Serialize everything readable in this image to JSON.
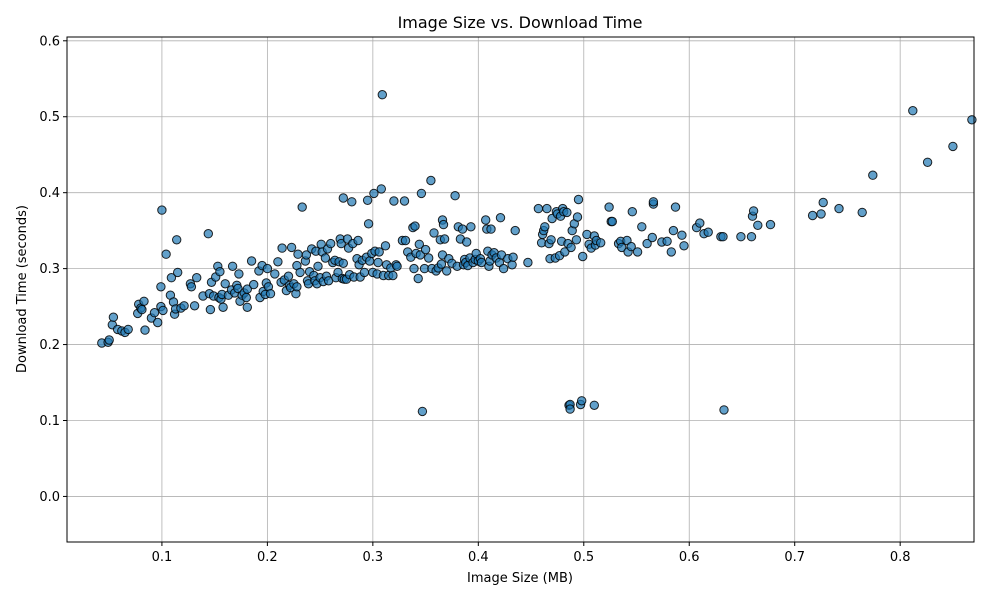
{
  "chart_data": {
    "type": "scatter",
    "title": "Image Size vs. Download Time",
    "xlabel": "Image Size (MB)",
    "ylabel": "Download Time (seconds)",
    "xlim": [
      0.01,
      0.87
    ],
    "ylim": [
      -0.06,
      0.605
    ],
    "xticks": [
      0.1,
      0.2,
      0.3,
      0.4,
      0.5,
      0.6,
      0.7,
      0.8
    ],
    "xtick_labels": [
      "0.1",
      "0.2",
      "0.3",
      "0.4",
      "0.5",
      "0.6",
      "0.7",
      "0.8"
    ],
    "yticks": [
      0.0,
      0.1,
      0.2,
      0.3,
      0.4,
      0.5,
      0.6
    ],
    "ytick_labels": [
      "0.0",
      "0.1",
      "0.2",
      "0.3",
      "0.4",
      "0.5",
      "0.6"
    ],
    "grid": true,
    "marker_color": "#1f77b4",
    "marker_edge_color": "#000000",
    "marker_alpha": 0.7,
    "points": [
      [
        0.043,
        0.202
      ],
      [
        0.049,
        0.203
      ],
      [
        0.05,
        0.206
      ],
      [
        0.053,
        0.226
      ],
      [
        0.054,
        0.236
      ],
      [
        0.058,
        0.22
      ],
      [
        0.062,
        0.218
      ],
      [
        0.065,
        0.216
      ],
      [
        0.068,
        0.22
      ],
      [
        0.077,
        0.241
      ],
      [
        0.078,
        0.253
      ],
      [
        0.08,
        0.248
      ],
      [
        0.081,
        0.246
      ],
      [
        0.083,
        0.257
      ],
      [
        0.084,
        0.219
      ],
      [
        0.09,
        0.235
      ],
      [
        0.093,
        0.242
      ],
      [
        0.096,
        0.229
      ],
      [
        0.099,
        0.276
      ],
      [
        0.099,
        0.25
      ],
      [
        0.1,
        0.377
      ],
      [
        0.101,
        0.245
      ],
      [
        0.104,
        0.319
      ],
      [
        0.108,
        0.265
      ],
      [
        0.109,
        0.288
      ],
      [
        0.111,
        0.256
      ],
      [
        0.112,
        0.24
      ],
      [
        0.113,
        0.247
      ],
      [
        0.114,
        0.338
      ],
      [
        0.115,
        0.295
      ],
      [
        0.118,
        0.248
      ],
      [
        0.121,
        0.251
      ],
      [
        0.127,
        0.28
      ],
      [
        0.128,
        0.276
      ],
      [
        0.131,
        0.251
      ],
      [
        0.133,
        0.288
      ],
      [
        0.139,
        0.264
      ],
      [
        0.144,
        0.346
      ],
      [
        0.145,
        0.267
      ],
      [
        0.146,
        0.246
      ],
      [
        0.147,
        0.282
      ],
      [
        0.149,
        0.264
      ],
      [
        0.151,
        0.289
      ],
      [
        0.153,
        0.303
      ],
      [
        0.154,
        0.262
      ],
      [
        0.155,
        0.296
      ],
      [
        0.156,
        0.26
      ],
      [
        0.157,
        0.266
      ],
      [
        0.158,
        0.249
      ],
      [
        0.16,
        0.28
      ],
      [
        0.163,
        0.265
      ],
      [
        0.166,
        0.272
      ],
      [
        0.167,
        0.303
      ],
      [
        0.169,
        0.268
      ],
      [
        0.171,
        0.278
      ],
      [
        0.172,
        0.274
      ],
      [
        0.173,
        0.293
      ],
      [
        0.174,
        0.257
      ],
      [
        0.176,
        0.265
      ],
      [
        0.178,
        0.268
      ],
      [
        0.18,
        0.262
      ],
      [
        0.181,
        0.273
      ],
      [
        0.181,
        0.249
      ],
      [
        0.185,
        0.31
      ],
      [
        0.187,
        0.279
      ],
      [
        0.192,
        0.297
      ],
      [
        0.193,
        0.262
      ],
      [
        0.195,
        0.304
      ],
      [
        0.196,
        0.27
      ],
      [
        0.198,
        0.266
      ],
      [
        0.199,
        0.281
      ],
      [
        0.2,
        0.3
      ],
      [
        0.201,
        0.276
      ],
      [
        0.203,
        0.267
      ],
      [
        0.207,
        0.293
      ],
      [
        0.21,
        0.309
      ],
      [
        0.213,
        0.282
      ],
      [
        0.214,
        0.327
      ],
      [
        0.216,
        0.285
      ],
      [
        0.218,
        0.271
      ],
      [
        0.22,
        0.29
      ],
      [
        0.221,
        0.278
      ],
      [
        0.222,
        0.275
      ],
      [
        0.223,
        0.328
      ],
      [
        0.225,
        0.28
      ],
      [
        0.227,
        0.267
      ],
      [
        0.228,
        0.304
      ],
      [
        0.228,
        0.276
      ],
      [
        0.229,
        0.319
      ],
      [
        0.231,
        0.295
      ],
      [
        0.233,
        0.381
      ],
      [
        0.236,
        0.31
      ],
      [
        0.237,
        0.318
      ],
      [
        0.238,
        0.284
      ],
      [
        0.239,
        0.28
      ],
      [
        0.24,
        0.296
      ],
      [
        0.242,
        0.326
      ],
      [
        0.244,
        0.291
      ],
      [
        0.245,
        0.284
      ],
      [
        0.246,
        0.323
      ],
      [
        0.247,
        0.28
      ],
      [
        0.248,
        0.303
      ],
      [
        0.25,
        0.288
      ],
      [
        0.251,
        0.332
      ],
      [
        0.252,
        0.322
      ],
      [
        0.253,
        0.283
      ],
      [
        0.255,
        0.314
      ],
      [
        0.256,
        0.29
      ],
      [
        0.257,
        0.326
      ],
      [
        0.258,
        0.284
      ],
      [
        0.26,
        0.333
      ],
      [
        0.262,
        0.308
      ],
      [
        0.264,
        0.311
      ],
      [
        0.265,
        0.288
      ],
      [
        0.267,
        0.295
      ],
      [
        0.268,
        0.309
      ],
      [
        0.269,
        0.339
      ],
      [
        0.27,
        0.333
      ],
      [
        0.271,
        0.287
      ],
      [
        0.272,
        0.307
      ],
      [
        0.272,
        0.393
      ],
      [
        0.273,
        0.286
      ],
      [
        0.275,
        0.286
      ],
      [
        0.276,
        0.339
      ],
      [
        0.277,
        0.327
      ],
      [
        0.278,
        0.292
      ],
      [
        0.28,
        0.388
      ],
      [
        0.281,
        0.333
      ],
      [
        0.282,
        0.289
      ],
      [
        0.285,
        0.313
      ],
      [
        0.286,
        0.337
      ],
      [
        0.287,
        0.305
      ],
      [
        0.288,
        0.289
      ],
      [
        0.29,
        0.311
      ],
      [
        0.292,
        0.295
      ],
      [
        0.294,
        0.315
      ],
      [
        0.295,
        0.39
      ],
      [
        0.296,
        0.359
      ],
      [
        0.297,
        0.31
      ],
      [
        0.299,
        0.32
      ],
      [
        0.3,
        0.295
      ],
      [
        0.301,
        0.399
      ],
      [
        0.302,
        0.323
      ],
      [
        0.304,
        0.293
      ],
      [
        0.305,
        0.308
      ],
      [
        0.306,
        0.322
      ],
      [
        0.308,
        0.405
      ],
      [
        0.309,
        0.529
      ],
      [
        0.31,
        0.291
      ],
      [
        0.312,
        0.33
      ],
      [
        0.313,
        0.305
      ],
      [
        0.315,
        0.291
      ],
      [
        0.317,
        0.301
      ],
      [
        0.319,
        0.291
      ],
      [
        0.32,
        0.389
      ],
      [
        0.322,
        0.305
      ],
      [
        0.323,
        0.303
      ],
      [
        0.328,
        0.337
      ],
      [
        0.33,
        0.389
      ],
      [
        0.331,
        0.337
      ],
      [
        0.333,
        0.322
      ],
      [
        0.336,
        0.315
      ],
      [
        0.338,
        0.354
      ],
      [
        0.339,
        0.3
      ],
      [
        0.34,
        0.356
      ],
      [
        0.341,
        0.32
      ],
      [
        0.343,
        0.287
      ],
      [
        0.344,
        0.332
      ],
      [
        0.345,
        0.318
      ],
      [
        0.346,
        0.399
      ],
      [
        0.347,
        0.112
      ],
      [
        0.349,
        0.3
      ],
      [
        0.35,
        0.325
      ],
      [
        0.353,
        0.314
      ],
      [
        0.355,
        0.416
      ],
      [
        0.356,
        0.3
      ],
      [
        0.358,
        0.347
      ],
      [
        0.36,
        0.297
      ],
      [
        0.362,
        0.301
      ],
      [
        0.364,
        0.338
      ],
      [
        0.365,
        0.306
      ],
      [
        0.366,
        0.318
      ],
      [
        0.366,
        0.364
      ],
      [
        0.367,
        0.358
      ],
      [
        0.368,
        0.339
      ],
      [
        0.37,
        0.297
      ],
      [
        0.372,
        0.313
      ],
      [
        0.375,
        0.307
      ],
      [
        0.378,
        0.396
      ],
      [
        0.38,
        0.303
      ],
      [
        0.381,
        0.355
      ],
      [
        0.383,
        0.339
      ],
      [
        0.385,
        0.352
      ],
      [
        0.386,
        0.305
      ],
      [
        0.387,
        0.312
      ],
      [
        0.388,
        0.308
      ],
      [
        0.389,
        0.335
      ],
      [
        0.39,
        0.304
      ],
      [
        0.392,
        0.314
      ],
      [
        0.393,
        0.355
      ],
      [
        0.395,
        0.308
      ],
      [
        0.397,
        0.312
      ],
      [
        0.398,
        0.32
      ],
      [
        0.4,
        0.31
      ],
      [
        0.402,
        0.313
      ],
      [
        0.403,
        0.308
      ],
      [
        0.407,
        0.364
      ],
      [
        0.408,
        0.352
      ],
      [
        0.409,
        0.323
      ],
      [
        0.41,
        0.303
      ],
      [
        0.411,
        0.31
      ],
      [
        0.412,
        0.352
      ],
      [
        0.413,
        0.318
      ],
      [
        0.415,
        0.321
      ],
      [
        0.417,
        0.314
      ],
      [
        0.42,
        0.308
      ],
      [
        0.421,
        0.367
      ],
      [
        0.422,
        0.318
      ],
      [
        0.424,
        0.3
      ],
      [
        0.428,
        0.313
      ],
      [
        0.432,
        0.305
      ],
      [
        0.433,
        0.315
      ],
      [
        0.435,
        0.35
      ],
      [
        0.447,
        0.308
      ],
      [
        0.457,
        0.379
      ],
      [
        0.46,
        0.334
      ],
      [
        0.461,
        0.345
      ],
      [
        0.462,
        0.35
      ],
      [
        0.463,
        0.355
      ],
      [
        0.465,
        0.379
      ],
      [
        0.467,
        0.333
      ],
      [
        0.468,
        0.313
      ],
      [
        0.469,
        0.338
      ],
      [
        0.47,
        0.366
      ],
      [
        0.473,
        0.314
      ],
      [
        0.474,
        0.375
      ],
      [
        0.475,
        0.372
      ],
      [
        0.477,
        0.317
      ],
      [
        0.478,
        0.369
      ],
      [
        0.479,
        0.336
      ],
      [
        0.48,
        0.379
      ],
      [
        0.481,
        0.375
      ],
      [
        0.482,
        0.322
      ],
      [
        0.484,
        0.374
      ],
      [
        0.485,
        0.333
      ],
      [
        0.486,
        0.12
      ],
      [
        0.487,
        0.121
      ],
      [
        0.487,
        0.115
      ],
      [
        0.488,
        0.328
      ],
      [
        0.489,
        0.35
      ],
      [
        0.491,
        0.359
      ],
      [
        0.493,
        0.338
      ],
      [
        0.494,
        0.368
      ],
      [
        0.495,
        0.391
      ],
      [
        0.497,
        0.121
      ],
      [
        0.498,
        0.126
      ],
      [
        0.499,
        0.316
      ],
      [
        0.503,
        0.345
      ],
      [
        0.505,
        0.332
      ],
      [
        0.507,
        0.327
      ],
      [
        0.51,
        0.343
      ],
      [
        0.51,
        0.12
      ],
      [
        0.511,
        0.331
      ],
      [
        0.512,
        0.337
      ],
      [
        0.516,
        0.334
      ],
      [
        0.524,
        0.381
      ],
      [
        0.526,
        0.362
      ],
      [
        0.527,
        0.362
      ],
      [
        0.533,
        0.333
      ],
      [
        0.535,
        0.336
      ],
      [
        0.536,
        0.328
      ],
      [
        0.541,
        0.337
      ],
      [
        0.542,
        0.322
      ],
      [
        0.545,
        0.329
      ],
      [
        0.546,
        0.375
      ],
      [
        0.551,
        0.322
      ],
      [
        0.555,
        0.355
      ],
      [
        0.56,
        0.333
      ],
      [
        0.565,
        0.341
      ],
      [
        0.566,
        0.385
      ],
      [
        0.566,
        0.388
      ],
      [
        0.574,
        0.335
      ],
      [
        0.579,
        0.336
      ],
      [
        0.583,
        0.322
      ],
      [
        0.585,
        0.35
      ],
      [
        0.587,
        0.381
      ],
      [
        0.593,
        0.344
      ],
      [
        0.595,
        0.33
      ],
      [
        0.607,
        0.354
      ],
      [
        0.61,
        0.36
      ],
      [
        0.614,
        0.346
      ],
      [
        0.618,
        0.348
      ],
      [
        0.63,
        0.342
      ],
      [
        0.632,
        0.342
      ],
      [
        0.633,
        0.114
      ],
      [
        0.649,
        0.342
      ],
      [
        0.659,
        0.342
      ],
      [
        0.66,
        0.369
      ],
      [
        0.661,
        0.376
      ],
      [
        0.665,
        0.357
      ],
      [
        0.677,
        0.358
      ],
      [
        0.717,
        0.37
      ],
      [
        0.725,
        0.372
      ],
      [
        0.727,
        0.387
      ],
      [
        0.742,
        0.379
      ],
      [
        0.764,
        0.374
      ],
      [
        0.774,
        0.423
      ],
      [
        0.812,
        0.508
      ],
      [
        0.826,
        0.44
      ],
      [
        0.85,
        0.461
      ],
      [
        0.868,
        0.496
      ]
    ]
  }
}
